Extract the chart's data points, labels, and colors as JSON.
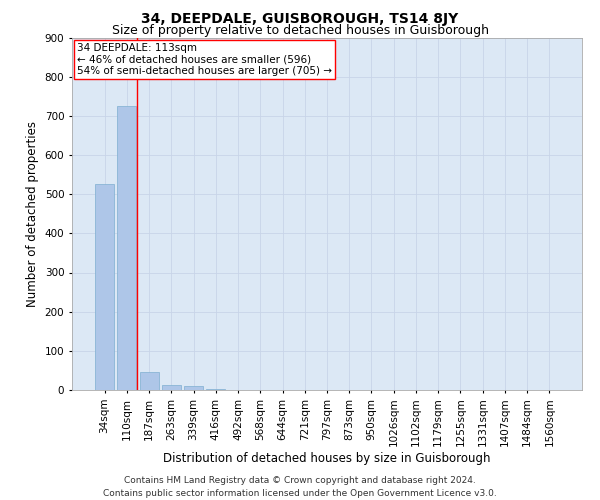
{
  "title": "34, DEEPDALE, GUISBOROUGH, TS14 8JY",
  "subtitle": "Size of property relative to detached houses in Guisborough",
  "xlabel": "Distribution of detached houses by size in Guisborough",
  "ylabel": "Number of detached properties",
  "categories": [
    "34sqm",
    "110sqm",
    "187sqm",
    "263sqm",
    "339sqm",
    "416sqm",
    "492sqm",
    "568sqm",
    "644sqm",
    "721sqm",
    "797sqm",
    "873sqm",
    "950sqm",
    "1026sqm",
    "1102sqm",
    "1179sqm",
    "1255sqm",
    "1331sqm",
    "1407sqm",
    "1484sqm",
    "1560sqm"
  ],
  "values": [
    525,
    725,
    47,
    12,
    10,
    2,
    1,
    0,
    0,
    0,
    0,
    0,
    0,
    0,
    0,
    0,
    0,
    0,
    0,
    0,
    0
  ],
  "bar_color": "#aec6e8",
  "bar_edge_color": "#7fafd0",
  "annotation_box_text": "34 DEEPDALE: 113sqm\n← 46% of detached houses are smaller (596)\n54% of semi-detached houses are larger (705) →",
  "ylim": [
    0,
    900
  ],
  "yticks": [
    0,
    100,
    200,
    300,
    400,
    500,
    600,
    700,
    800,
    900
  ],
  "grid_color": "#c8d4e8",
  "background_color": "#dce8f5",
  "title_fontsize": 10,
  "subtitle_fontsize": 9,
  "axis_label_fontsize": 8.5,
  "tick_fontsize": 7.5,
  "ann_fontsize": 7.5,
  "footer_text": "Contains HM Land Registry data © Crown copyright and database right 2024.\nContains public sector information licensed under the Open Government Licence v3.0.",
  "footer_fontsize": 6.5
}
